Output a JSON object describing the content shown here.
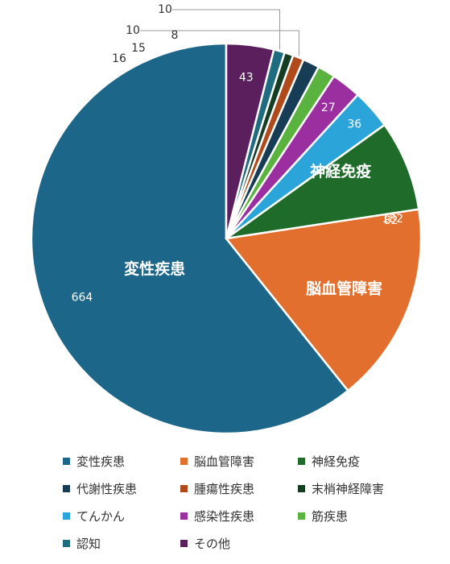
{
  "chart_data": {
    "type": "pie",
    "categories": [
      "変性疾患",
      "脳血管障害",
      "神経免疫",
      "代謝性疾患",
      "腫瘍性疾患",
      "末梢神経障害",
      "てんかん",
      "感染性疾患",
      "筋疾患",
      "認知",
      "その他"
    ],
    "values": [
      664,
      182,
      82,
      15,
      10,
      8,
      36,
      27,
      16,
      10,
      43
    ],
    "colors": [
      "#1b6689",
      "#e26f2d",
      "#1e6b2a",
      "#163c56",
      "#b04a1a",
      "#143d24",
      "#2aa4d9",
      "#9b2fa0",
      "#5ab33e",
      "#1f6b80",
      "#5b1f5e"
    ],
    "slice_order": [
      "変性疾患",
      "脳血管障害",
      "神経免疫",
      "てんかん",
      "感染性疾患",
      "筋疾患",
      "代謝性疾患",
      "腫瘍性疾患",
      "末梢神経障害",
      "認知",
      "その他"
    ],
    "inside_labels": [
      "変性疾患",
      "脳血管障害",
      "神経免疫"
    ],
    "start": "12 o'clock",
    "direction": "counter-clockwise",
    "legend_position": "bottom",
    "title": ""
  },
  "legend": {
    "items": [
      {
        "label": "変性疾患",
        "color": "#1b6689"
      },
      {
        "label": "脳血管障害",
        "color": "#e26f2d"
      },
      {
        "label": "神経免疫",
        "color": "#1e6b2a"
      },
      {
        "label": "代謝性疾患",
        "color": "#163c56"
      },
      {
        "label": "腫瘍性疾患",
        "color": "#b04a1a"
      },
      {
        "label": "末梢神経障害",
        "color": "#143d24"
      },
      {
        "label": "てんかん",
        "color": "#2aa4d9"
      },
      {
        "label": "感染性疾患",
        "color": "#9b2fa0"
      },
      {
        "label": "筋疾患",
        "color": "#5ab33e"
      },
      {
        "label": "認知",
        "color": "#1f6b80"
      },
      {
        "label": "その他",
        "color": "#5b1f5e"
      }
    ]
  }
}
